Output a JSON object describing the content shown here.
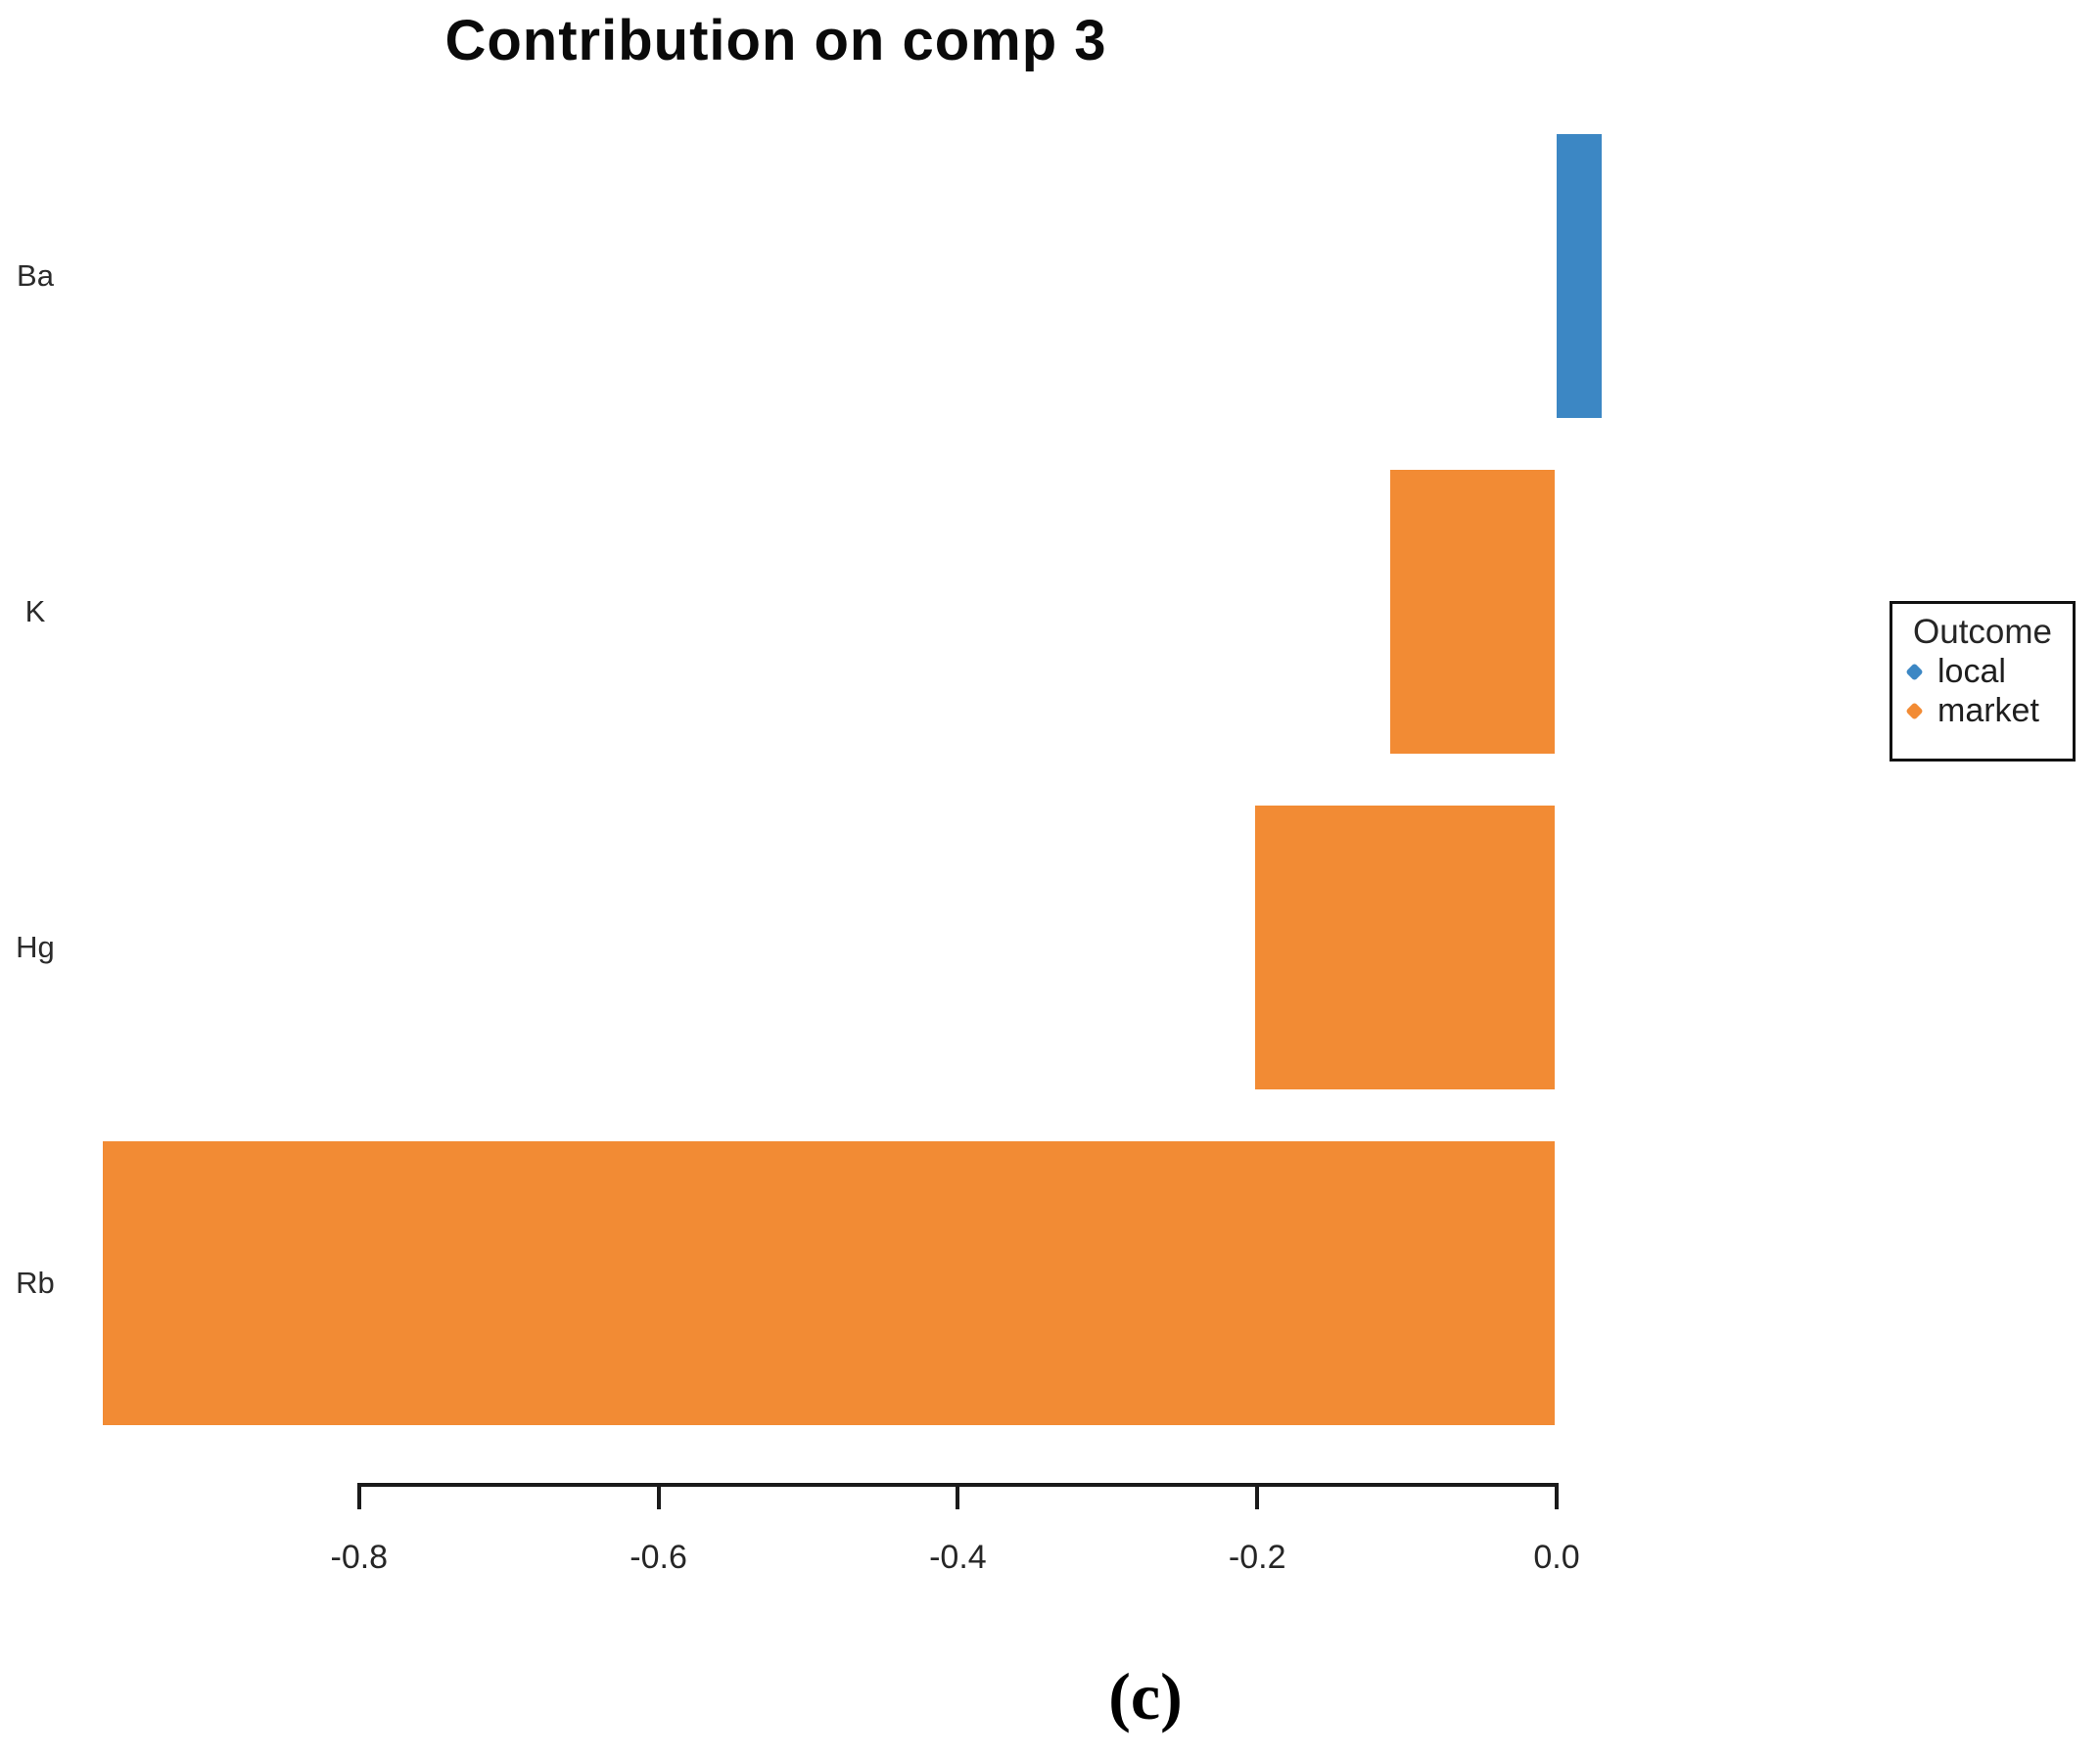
{
  "figure": {
    "caption": "(c)"
  },
  "chart_data": {
    "type": "bar",
    "orientation": "horizontal",
    "title": "Contribution on comp 3",
    "categories": [
      "Ba",
      "K",
      "Hg",
      "Rb"
    ],
    "values": [
      0.03,
      -0.11,
      -0.2,
      -0.97
    ],
    "outcome_by_category": [
      "local",
      "market",
      "market",
      "market"
    ],
    "xlabel": "",
    "ylabel": "",
    "xtick_values": [
      -0.8,
      -0.6,
      -0.4,
      -0.2,
      0.0
    ],
    "xtick_labels": [
      "-0.8",
      "-0.6",
      "-0.4",
      "-0.2",
      "0.0"
    ],
    "xlim": [
      -1.0,
      0.04
    ],
    "grid": false,
    "axis_color": "#1a1a1a",
    "legend": {
      "title": "Outcome",
      "position": "right",
      "entries": [
        {
          "label": "local",
          "color": "#3C87C4"
        },
        {
          "label": "market",
          "color": "#F28B34"
        }
      ]
    }
  }
}
